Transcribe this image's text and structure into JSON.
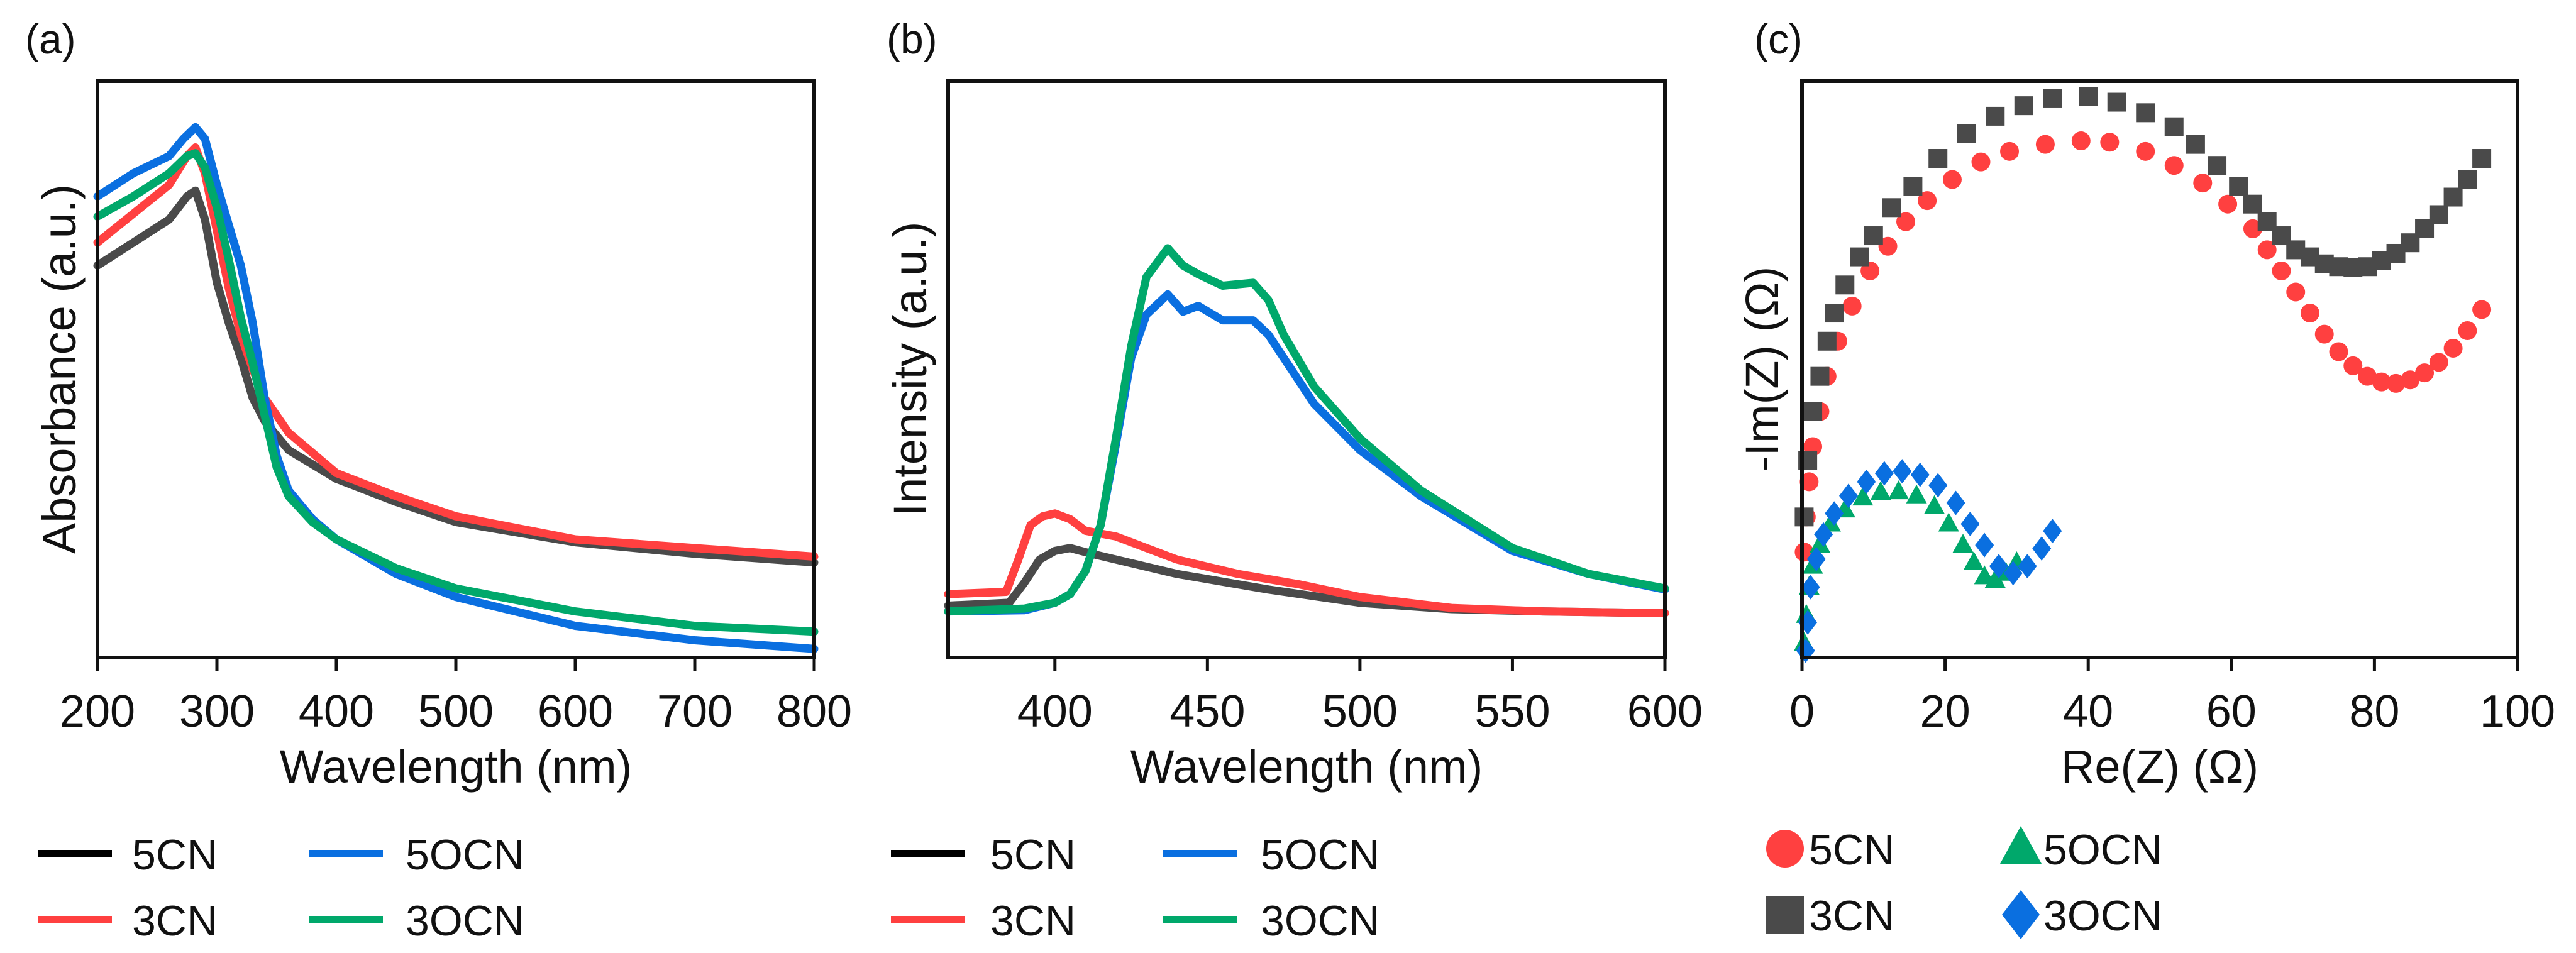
{
  "colors": {
    "5CN_line": "#4a4a4a",
    "5CN_legend": "#000000",
    "3CN": "#ff4040",
    "5OCN": "#0a6fe0",
    "3OCN": "#00a86b",
    "3CN_marker": "#4a4a4a"
  },
  "chart_data": [
    {
      "panel_label": "(a)",
      "type": "line",
      "xlabel": "Wavelength (nm)",
      "ylabel": "Absorbance (a.u.)",
      "xlim": [
        200,
        800
      ],
      "ylim": [
        0,
        1
      ],
      "xticks": [
        "200",
        "300",
        "400",
        "500",
        "600",
        "700",
        "800"
      ],
      "legend": [
        "5CN",
        "5OCN",
        "3CN",
        "3OCN"
      ],
      "series": [
        {
          "name": "5CN",
          "color_key": "5CN_line",
          "x": [
            200,
            230,
            260,
            275,
            282,
            290,
            300,
            310,
            320,
            330,
            340,
            360,
            400,
            450,
            500,
            600,
            700,
            800
          ],
          "y": [
            0.68,
            0.72,
            0.76,
            0.8,
            0.81,
            0.76,
            0.65,
            0.58,
            0.52,
            0.45,
            0.41,
            0.36,
            0.31,
            0.27,
            0.235,
            0.2,
            0.18,
            0.165
          ]
        },
        {
          "name": "3CN",
          "color_key": "3CN",
          "x": [
            200,
            230,
            260,
            275,
            282,
            290,
            300,
            310,
            320,
            330,
            340,
            360,
            400,
            450,
            500,
            600,
            700,
            800
          ],
          "y": [
            0.72,
            0.77,
            0.82,
            0.87,
            0.885,
            0.84,
            0.74,
            0.64,
            0.56,
            0.5,
            0.45,
            0.39,
            0.32,
            0.28,
            0.245,
            0.205,
            0.19,
            0.175
          ]
        },
        {
          "name": "5OCN",
          "color_key": "5OCN",
          "x": [
            200,
            230,
            260,
            272,
            282,
            290,
            300,
            310,
            320,
            330,
            340,
            350,
            360,
            380,
            400,
            450,
            500,
            600,
            700,
            800
          ],
          "y": [
            0.8,
            0.84,
            0.87,
            0.9,
            0.92,
            0.9,
            0.82,
            0.75,
            0.68,
            0.58,
            0.45,
            0.35,
            0.29,
            0.24,
            0.205,
            0.145,
            0.105,
            0.055,
            0.03,
            0.015
          ]
        },
        {
          "name": "3OCN",
          "color_key": "3OCN",
          "x": [
            200,
            230,
            260,
            275,
            282,
            290,
            300,
            310,
            320,
            330,
            340,
            350,
            360,
            380,
            400,
            450,
            500,
            600,
            700,
            800
          ],
          "y": [
            0.765,
            0.8,
            0.84,
            0.87,
            0.875,
            0.85,
            0.78,
            0.69,
            0.59,
            0.51,
            0.42,
            0.33,
            0.28,
            0.235,
            0.205,
            0.155,
            0.12,
            0.08,
            0.055,
            0.045
          ]
        }
      ]
    },
    {
      "panel_label": "(b)",
      "type": "line",
      "xlabel": "Wavelength (nm)",
      "ylabel": "Intensity (a.u.)",
      "xlim": [
        365,
        600
      ],
      "ylim": [
        0,
        1
      ],
      "xticks": [
        "400",
        "450",
        "500",
        "550",
        "600"
      ],
      "legend": [
        "5CN",
        "5OCN",
        "3CN",
        "3OCN"
      ],
      "series": [
        {
          "name": "5CN",
          "color_key": "5CN_line",
          "x": [
            365,
            385,
            390,
            395,
            400,
            405,
            412,
            420,
            440,
            470,
            500,
            530,
            560,
            600
          ],
          "y": [
            0.09,
            0.095,
            0.13,
            0.17,
            0.185,
            0.19,
            0.18,
            0.17,
            0.145,
            0.118,
            0.095,
            0.084,
            0.08,
            0.077
          ]
        },
        {
          "name": "3CN",
          "color_key": "3CN",
          "x": [
            365,
            384,
            388,
            392,
            396,
            400,
            405,
            410,
            420,
            440,
            460,
            480,
            500,
            530,
            560,
            600
          ],
          "y": [
            0.11,
            0.114,
            0.17,
            0.23,
            0.245,
            0.25,
            0.24,
            0.22,
            0.21,
            0.17,
            0.145,
            0.127,
            0.105,
            0.086,
            0.08,
            0.077
          ]
        },
        {
          "name": "5OCN",
          "color_key": "5OCN",
          "x": [
            365,
            390,
            400,
            405,
            410,
            415,
            420,
            425,
            430,
            437,
            442,
            447,
            455,
            465,
            470,
            475,
            485,
            500,
            520,
            550,
            575,
            600
          ],
          "y": [
            0.08,
            0.082,
            0.095,
            0.11,
            0.15,
            0.23,
            0.37,
            0.52,
            0.595,
            0.63,
            0.6,
            0.61,
            0.585,
            0.585,
            0.56,
            0.52,
            0.44,
            0.36,
            0.28,
            0.185,
            0.145,
            0.118
          ]
        },
        {
          "name": "3OCN",
          "color_key": "3OCN",
          "x": [
            365,
            390,
            400,
            405,
            410,
            415,
            420,
            425,
            430,
            437,
            442,
            447,
            455,
            465,
            470,
            475,
            485,
            500,
            520,
            550,
            575,
            600
          ],
          "y": [
            0.08,
            0.085,
            0.095,
            0.11,
            0.15,
            0.23,
            0.38,
            0.54,
            0.66,
            0.71,
            0.68,
            0.665,
            0.645,
            0.65,
            0.62,
            0.56,
            0.47,
            0.38,
            0.29,
            0.19,
            0.145,
            0.12
          ]
        }
      ]
    },
    {
      "panel_label": "(c)",
      "type": "scatter",
      "xlabel": "Re(Z) (Ω)",
      "ylabel": "-Im(Z) (Ω)",
      "xlim": [
        0,
        100
      ],
      "ylim": [
        0,
        82
      ],
      "xticks": [
        "0",
        "20",
        "40",
        "60",
        "80",
        "100"
      ],
      "legend": [
        "5CN",
        "5OCN",
        "3CN",
        "3OCN"
      ],
      "series": [
        {
          "name": "5CN",
          "marker": "circle",
          "color_key": "3CN",
          "points": [
            [
              0.3,
              15
            ],
            [
              0.6,
              20
            ],
            [
              1,
              25
            ],
            [
              1.5,
              30
            ],
            [
              2.5,
              35
            ],
            [
              3.5,
              40
            ],
            [
              5,
              45
            ],
            [
              7,
              50
            ],
            [
              9.5,
              55
            ],
            [
              12,
              58.5
            ],
            [
              14.5,
              62
            ],
            [
              17.5,
              65
            ],
            [
              21,
              68
            ],
            [
              25,
              70.5
            ],
            [
              29,
              72
            ],
            [
              34,
              73
            ],
            [
              39,
              73.5
            ],
            [
              43,
              73.3
            ],
            [
              48,
              72
            ],
            [
              52,
              70
            ],
            [
              56,
              67.5
            ],
            [
              59.5,
              64.5
            ],
            [
              63,
              61
            ],
            [
              65,
              58
            ],
            [
              67,
              55
            ],
            [
              69,
              52
            ],
            [
              71,
              49
            ],
            [
              73,
              46
            ],
            [
              75,
              43.5
            ],
            [
              77,
              41.5
            ],
            [
              79,
              40
            ],
            [
              81,
              39.2
            ],
            [
              83,
              39
            ],
            [
              85,
              39.5
            ],
            [
              87,
              40.5
            ],
            [
              89,
              42
            ],
            [
              91,
              44
            ],
            [
              93,
              46.5
            ],
            [
              95,
              49.5
            ]
          ]
        },
        {
          "name": "3CN",
          "marker": "square",
          "color_key": "3CN_marker",
          "points": [
            [
              0.3,
              20
            ],
            [
              0.8,
              28
            ],
            [
              1.5,
              35
            ],
            [
              2.5,
              40
            ],
            [
              3.5,
              45
            ],
            [
              4.5,
              49
            ],
            [
              6,
              53
            ],
            [
              8,
              57
            ],
            [
              10,
              60
            ],
            [
              12.5,
              64
            ],
            [
              15.5,
              67
            ],
            [
              19,
              71
            ],
            [
              23,
              74.5
            ],
            [
              27,
              77
            ],
            [
              31,
              78.5
            ],
            [
              35,
              79.5
            ],
            [
              40,
              79.8
            ],
            [
              44,
              79
            ],
            [
              48,
              77.5
            ],
            [
              52,
              75.5
            ],
            [
              55,
              73
            ],
            [
              58,
              70
            ],
            [
              61,
              67
            ],
            [
              63,
              64.5
            ],
            [
              65,
              62
            ],
            [
              67,
              60
            ],
            [
              69,
              58
            ],
            [
              71,
              57
            ],
            [
              73,
              56
            ],
            [
              75,
              55.6
            ],
            [
              77,
              55.5
            ],
            [
              79,
              55.6
            ],
            [
              81,
              56.5
            ],
            [
              83,
              57.5
            ],
            [
              85,
              59
            ],
            [
              87,
              61
            ],
            [
              89,
              63
            ],
            [
              91,
              65.5
            ],
            [
              93,
              68
            ],
            [
              95,
              71
            ]
          ]
        },
        {
          "name": "5OCN",
          "marker": "triangle",
          "color_key": "3OCN",
          "points": [
            [
              0.3,
              2
            ],
            [
              0.6,
              6
            ],
            [
              1,
              10
            ],
            [
              1.5,
              13
            ],
            [
              2.5,
              16
            ],
            [
              4,
              19
            ],
            [
              6,
              21
            ],
            [
              8.5,
              22.7
            ],
            [
              11,
              23.5
            ],
            [
              13.5,
              23.6
            ],
            [
              16,
              23
            ],
            [
              18.5,
              21.5
            ],
            [
              20.5,
              19
            ],
            [
              22.5,
              16
            ],
            [
              24,
              13.5
            ],
            [
              25.5,
              11.5
            ],
            [
              27,
              11
            ],
            [
              28.5,
              12
            ],
            [
              30,
              13.5
            ]
          ]
        },
        {
          "name": "3OCN",
          "marker": "diamond",
          "color_key": "5OCN",
          "points": [
            [
              0.5,
              1
            ],
            [
              0.8,
              5
            ],
            [
              1.2,
              10
            ],
            [
              2,
              14
            ],
            [
              3,
              17.5
            ],
            [
              4.5,
              20.5
            ],
            [
              6.5,
              23
            ],
            [
              9,
              25
            ],
            [
              11.5,
              26.2
            ],
            [
              14,
              26.5
            ],
            [
              16.5,
              26
            ],
            [
              19,
              24.5
            ],
            [
              21.5,
              22
            ],
            [
              23.5,
              19
            ],
            [
              25.5,
              16
            ],
            [
              27.5,
              13
            ],
            [
              29.5,
              12
            ],
            [
              31.5,
              13
            ],
            [
              33.5,
              15.5
            ],
            [
              35,
              18
            ]
          ]
        }
      ]
    }
  ]
}
